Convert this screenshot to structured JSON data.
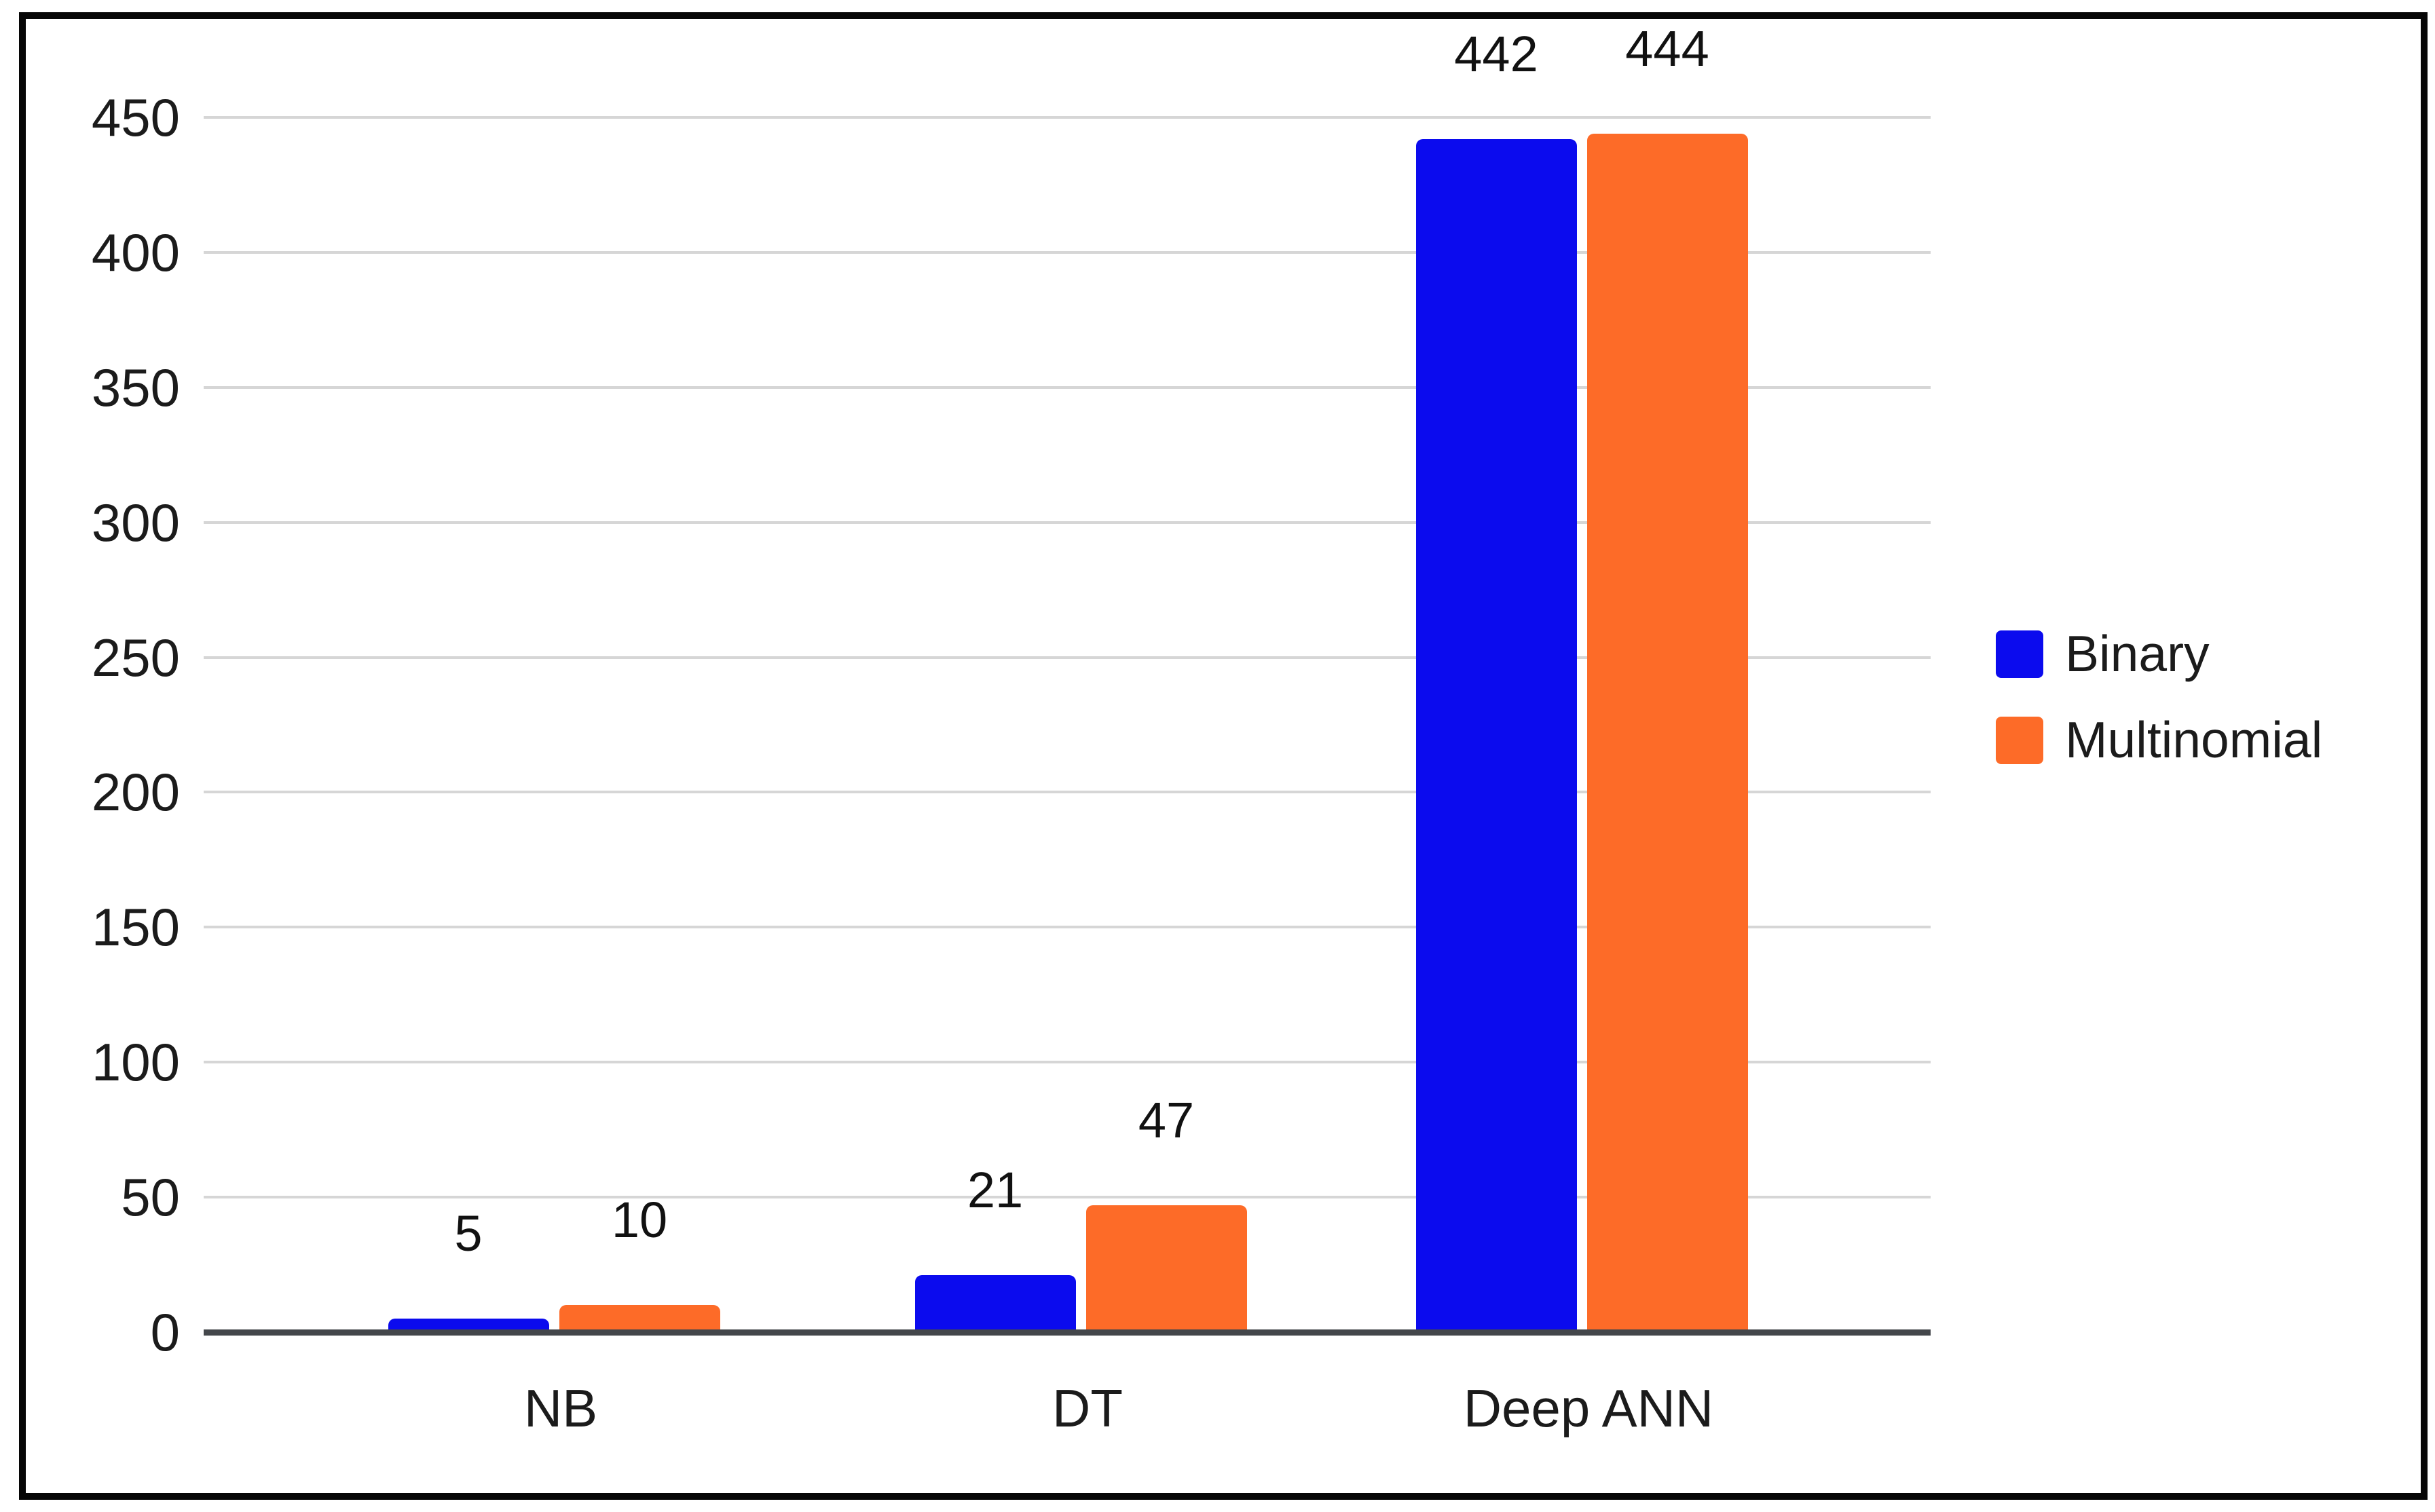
{
  "chart_data": {
    "type": "bar",
    "categories": [
      "NB",
      "DT",
      "Deep ANN"
    ],
    "series": [
      {
        "name": "Binary",
        "color": "#0b0bee",
        "values": [
          5,
          21,
          442
        ]
      },
      {
        "name": "Multinomial",
        "color": "#fd6b28",
        "values": [
          10,
          47,
          444
        ]
      }
    ],
    "title": "",
    "xlabel": "",
    "ylabel": "",
    "ylim": [
      0,
      450
    ],
    "yticks": [
      0,
      50,
      100,
      150,
      200,
      250,
      300,
      350,
      400,
      450
    ],
    "grid": true,
    "legend_position": "middle-right",
    "bar_value_labels": [
      "5",
      "10",
      "21",
      "47",
      "442",
      "444"
    ],
    "colors": {
      "binary": "#0b0bee",
      "multinomial": "#fd6b28",
      "gridline": "#d6d6d6",
      "baseline": "#44474b",
      "text": "#1b1b1b",
      "frame_border": "#060606",
      "background": "#ffffff"
    }
  }
}
